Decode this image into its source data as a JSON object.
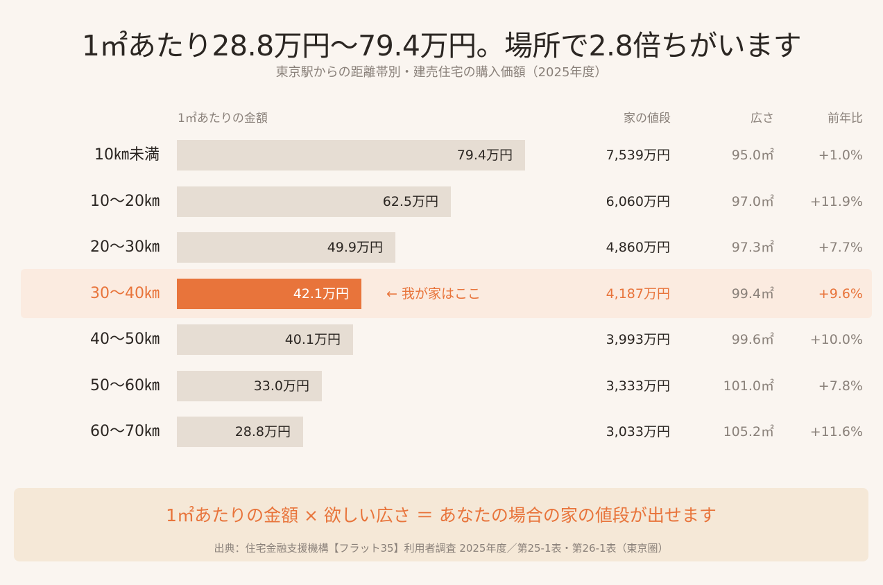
{
  "title": "1㎡あたり28.8万円〜79.4万円。場所で2.8倍ちがいます",
  "subtitle": "東京駅からの距離帯別・建売住宅の購入価額（2025年度）",
  "columns": {
    "per_sqm": "1㎡あたりの金額",
    "price": "家の値段",
    "area": "広さ",
    "yoy": "前年比"
  },
  "marker_text": "←  我が家はここ",
  "colors": {
    "accent": "#e8743b",
    "bar": "#e6ddd3",
    "highlight_band": "#fbebe0"
  },
  "chart_data": {
    "type": "bar",
    "orientation": "horizontal",
    "unit": "万円",
    "xlim": [
      0,
      79.4
    ],
    "highlight_category": "30〜40㎞",
    "categories": [
      "10㎞未満",
      "10〜20㎞",
      "20〜30㎞",
      "30〜40㎞",
      "40〜50㎞",
      "50〜60㎞",
      "60〜70㎞"
    ],
    "values": [
      79.4,
      62.5,
      49.9,
      42.1,
      40.1,
      33.0,
      28.8
    ],
    "value_labels": [
      "79.4万円",
      "62.5万円",
      "49.9万円",
      "42.1万円",
      "40.1万円",
      "33.0万円",
      "28.8万円"
    ],
    "prices": [
      "7,539万円",
      "6,060万円",
      "4,860万円",
      "4,187万円",
      "3,993万円",
      "3,333万円",
      "3,033万円"
    ],
    "areas": [
      "95.0㎡",
      "97.0㎡",
      "97.3㎡",
      "99.4㎡",
      "99.6㎡",
      "101.0㎡",
      "105.2㎡"
    ],
    "yoy": [
      "+1.0%",
      "+11.9%",
      "+7.7%",
      "+9.6%",
      "+10.0%",
      "+7.8%",
      "+11.6%"
    ]
  },
  "footer": {
    "formula": "1㎡あたりの金額 × 欲しい広さ ＝ あなたの場合の家の値段が出せます",
    "source": "出典：住宅金融支援機構【フラット35】利用者調査 2025年度／第25-1表・第26-1表（東京圏）"
  }
}
